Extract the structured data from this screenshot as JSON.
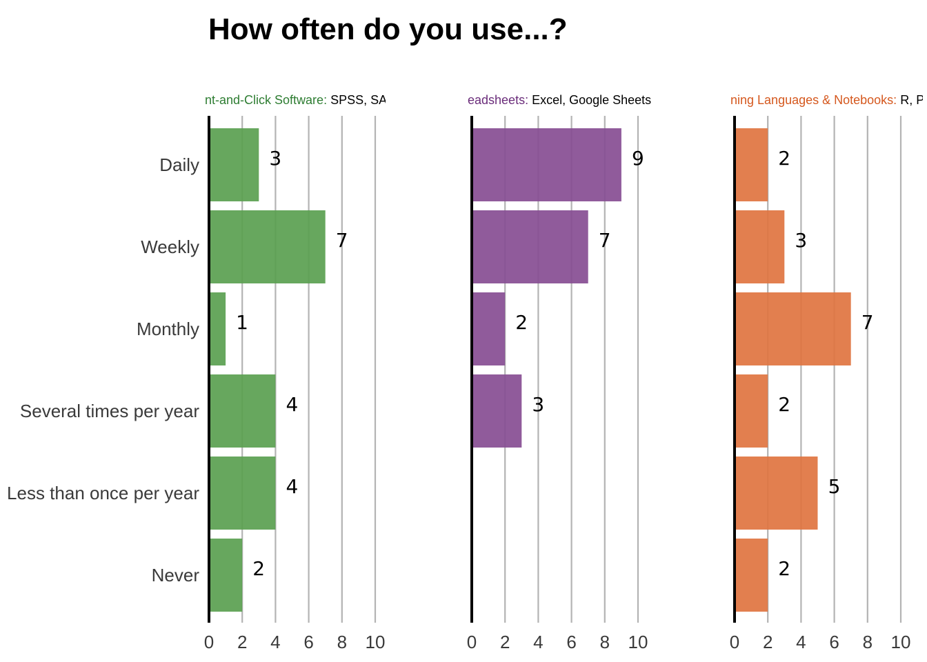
{
  "title": "How often do you use...?",
  "chart_data": {
    "type": "bar",
    "orientation": "horizontal",
    "title": "How often do you use...?",
    "categories": [
      "Daily",
      "Weekly",
      "Monthly",
      "Several times per year",
      "Less than once per year",
      "Never"
    ],
    "xlim": [
      0,
      10
    ],
    "xticks": [
      "0",
      "2",
      "4",
      "6",
      "8",
      "10"
    ],
    "grid": true,
    "facets": [
      {
        "title_colored": "nt-and-Click Software:",
        "title_rest": " SPSS, SAS,",
        "color": "#5aa050",
        "title_color": "#2e7d32",
        "values": [
          3,
          7,
          1,
          4,
          4,
          2
        ]
      },
      {
        "title_colored": "eadsheets:",
        "title_rest": " Excel, Google Sheets, (",
        "color": "#874d93",
        "title_color": "#6a2c7a",
        "values": [
          9,
          7,
          2,
          3,
          null,
          null
        ]
      },
      {
        "title_colored": "ning Languages & Notebooks:",
        "title_rest": " R, Py",
        "color": "#e07440",
        "title_color": "#d5581e",
        "values": [
          2,
          3,
          7,
          2,
          5,
          2
        ]
      }
    ]
  }
}
